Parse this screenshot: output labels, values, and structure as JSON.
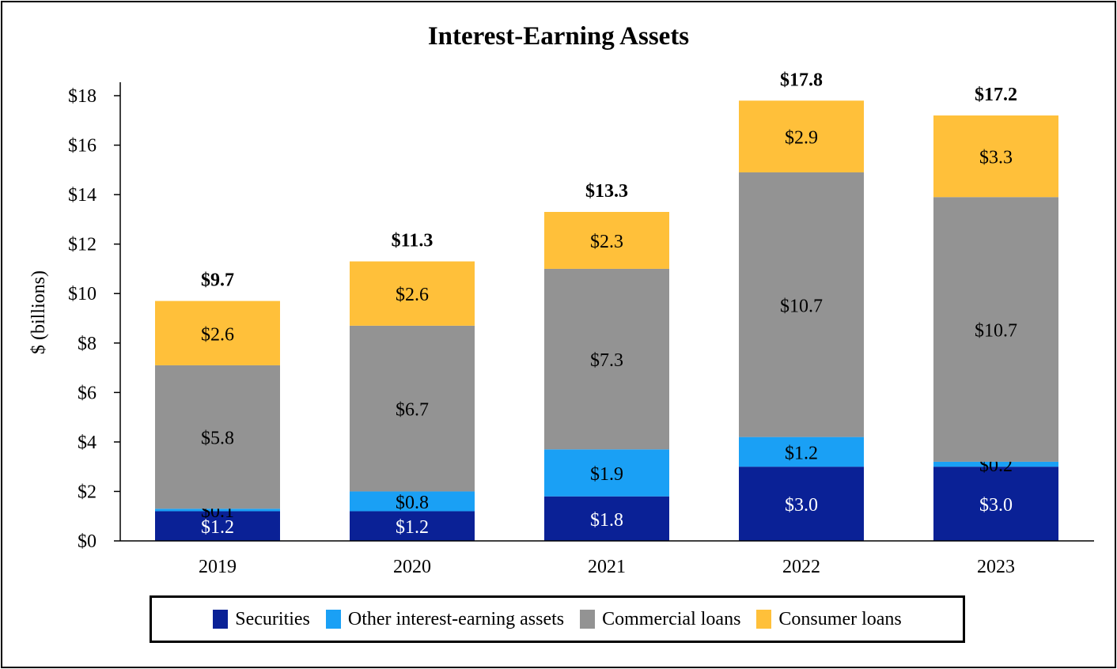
{
  "chart_data": {
    "type": "bar",
    "stacked": true,
    "title": "Interest-Earning Assets",
    "xlabel": "",
    "ylabel": "$ (billions)",
    "ylim": [
      0,
      18
    ],
    "yticks": [
      0,
      2,
      4,
      6,
      8,
      10,
      12,
      14,
      16,
      18
    ],
    "ytick_labels": [
      "$0",
      "$2",
      "$4",
      "$6",
      "$8",
      "$10",
      "$12",
      "$14",
      "$16",
      "$18"
    ],
    "categories": [
      "2019",
      "2020",
      "2021",
      "2022",
      "2023"
    ],
    "series": [
      {
        "name": "Securities",
        "color": "#0a2196",
        "label_color": "#ffffff",
        "values": [
          1.2,
          1.2,
          1.8,
          3.0,
          3.0
        ],
        "labels": [
          "$1.2",
          "$1.2",
          "$1.8",
          "$3.0",
          "$3.0"
        ]
      },
      {
        "name": "Other interest-earning assets",
        "color": "#1aa0f5",
        "label_color": "#000000",
        "values": [
          0.1,
          0.8,
          1.9,
          1.2,
          0.2
        ],
        "labels": [
          "$0.1",
          "$0.8",
          "$1.9",
          "$1.2",
          "$0.2"
        ]
      },
      {
        "name": "Commercial loans",
        "color": "#939393",
        "label_color": "#000000",
        "values": [
          5.8,
          6.7,
          7.3,
          10.7,
          10.7
        ],
        "labels": [
          "$5.8",
          "$6.7",
          "$7.3",
          "$10.7",
          "$10.7"
        ]
      },
      {
        "name": "Consumer loans",
        "color": "#ffc03a",
        "label_color": "#000000",
        "values": [
          2.6,
          2.6,
          2.3,
          2.9,
          3.3
        ],
        "labels": [
          "$2.6",
          "$2.6",
          "$2.3",
          "$2.9",
          "$3.3"
        ]
      }
    ],
    "totals": [
      9.7,
      11.3,
      13.3,
      17.8,
      17.2
    ],
    "total_labels": [
      "$9.7",
      "$11.3",
      "$13.3",
      "$17.8",
      "$17.2"
    ],
    "legend_position": "bottom",
    "grid": false
  }
}
